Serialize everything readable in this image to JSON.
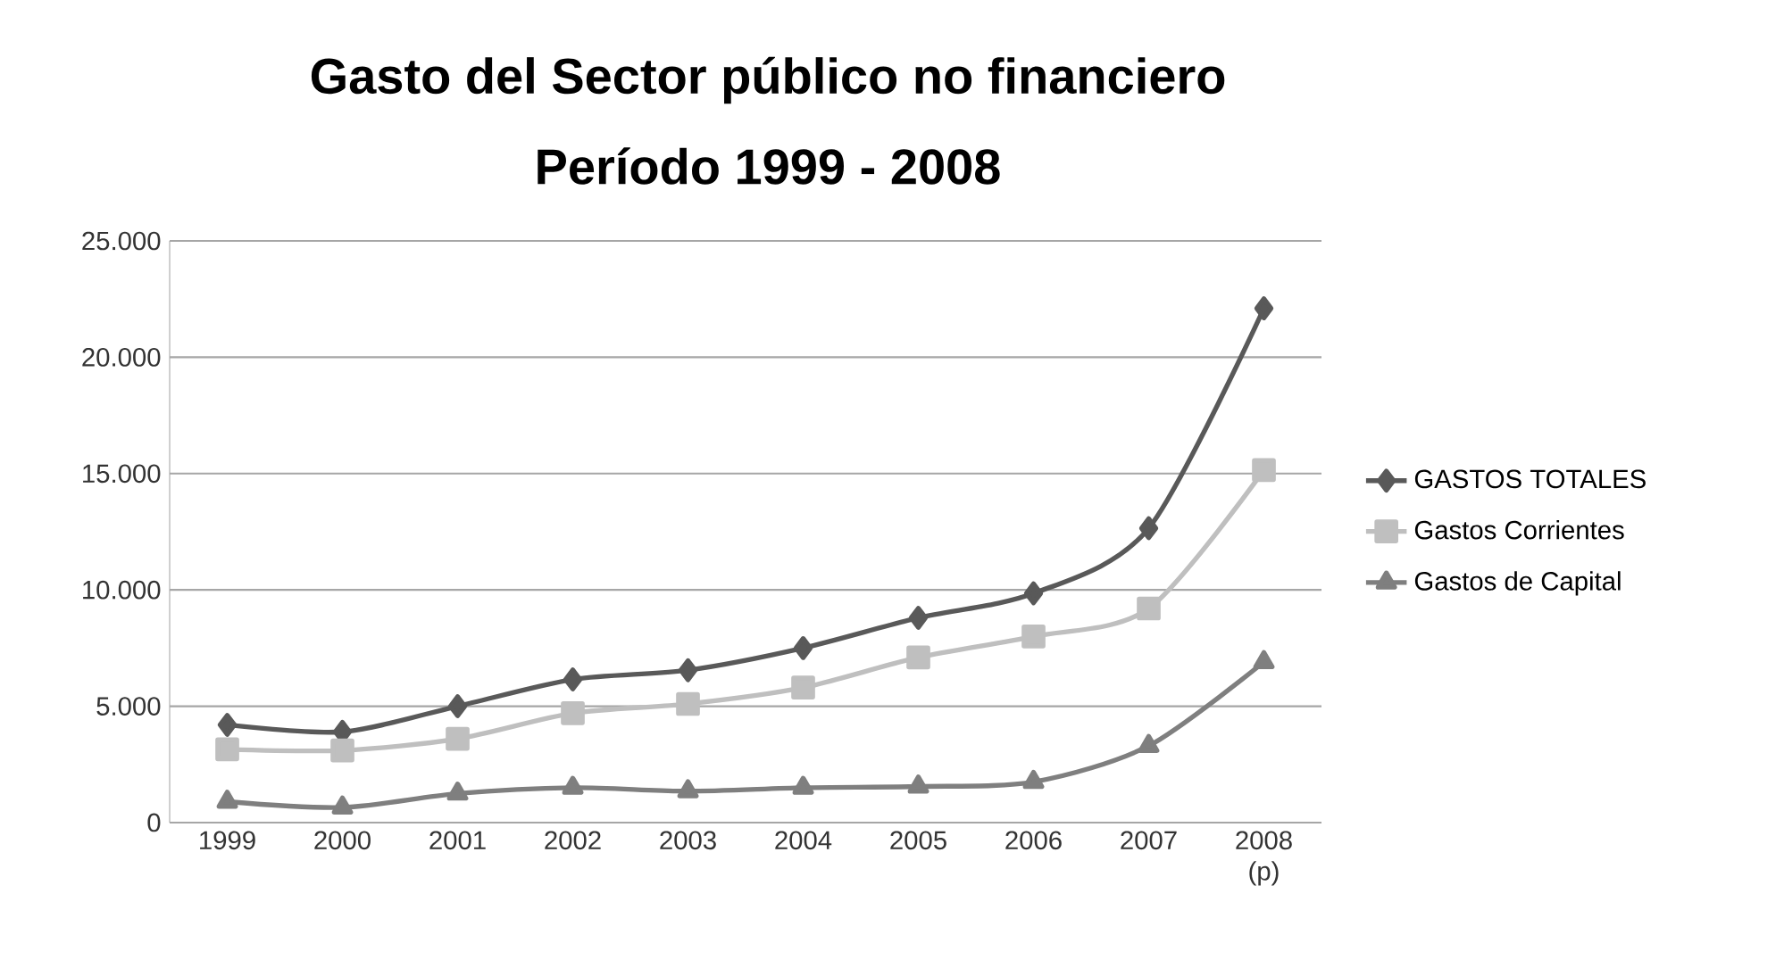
{
  "chart_data": {
    "type": "line",
    "title": "Gasto del Sector público no financiero",
    "subtitle": "Período 1999 - 2008",
    "categories": [
      "1999",
      "2000",
      "2001",
      "2002",
      "2003",
      "2004",
      "2005",
      "2006",
      "2007",
      "2008 (p)"
    ],
    "series": [
      {
        "name": "GASTOS TOTALES",
        "color": "#595959",
        "marker": "diamond",
        "values": [
          4200,
          3900,
          5000,
          6150,
          6550,
          7500,
          8800,
          9850,
          12650,
          22100
        ]
      },
      {
        "name": "Gastos Corrientes",
        "color": "#bfbfbf",
        "marker": "square",
        "values": [
          3150,
          3100,
          3600,
          4700,
          5100,
          5800,
          7100,
          8000,
          9200,
          15150
        ]
      },
      {
        "name": "Gastos de Capital",
        "color": "#7f7f7f",
        "marker": "triangle",
        "values": [
          900,
          650,
          1250,
          1500,
          1350,
          1500,
          1550,
          1750,
          3300,
          6900
        ]
      }
    ],
    "ylim": [
      0,
      25000
    ],
    "yticks": [
      0,
      {
        "value": 5000,
        "label": "5.000"
      },
      {
        "value": 10000,
        "label": "10.000"
      },
      {
        "value": 15000,
        "label": "15.000"
      },
      {
        "value": 20000,
        "label": "20.000"
      },
      {
        "value": 25000,
        "label": "25.000"
      }
    ],
    "grid": "y",
    "legend": "right"
  }
}
